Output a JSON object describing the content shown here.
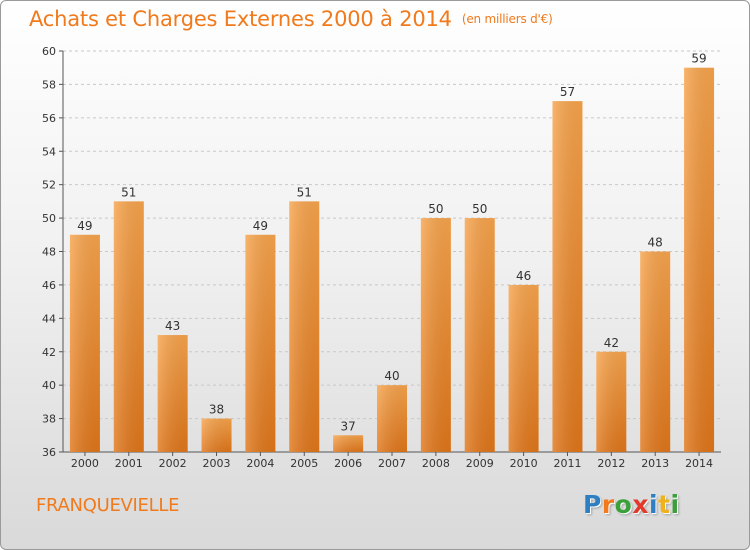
{
  "header": {
    "title": "Achats et Charges Externes 2000 à 2014",
    "unit": "(en milliers d'€)"
  },
  "footer": {
    "city": "FRANQUEVIELLE",
    "logo": [
      "P",
      "r",
      "o",
      "x",
      "i",
      "t",
      "i"
    ],
    "logo_colors": [
      "#2e7fc2",
      "#f07a1c",
      "#3aa03a",
      "#e23a2a",
      "#2e7fc2",
      "#f0b21c",
      "#3aa03a"
    ]
  },
  "colors": {
    "bar_light": "#f7a44c",
    "bar_dark": "#e0761a",
    "title": "#f07a1c"
  },
  "chart_data": {
    "type": "bar",
    "title": "Achats et Charges Externes 2000 à 2014",
    "subtitle": "(en milliers d'€)",
    "xlabel": "",
    "ylabel": "",
    "categories": [
      "2000",
      "2001",
      "2002",
      "2003",
      "2004",
      "2005",
      "2006",
      "2007",
      "2008",
      "2009",
      "2010",
      "2011",
      "2012",
      "2013",
      "2014"
    ],
    "values": [
      49,
      51,
      43,
      38,
      49,
      51,
      37,
      40,
      50,
      50,
      46,
      57,
      42,
      48,
      59
    ],
    "ylim": [
      36,
      60
    ],
    "yticks": [
      36,
      38,
      40,
      42,
      44,
      46,
      48,
      50,
      52,
      54,
      56,
      58,
      60
    ],
    "grid": true,
    "legend": "none"
  }
}
